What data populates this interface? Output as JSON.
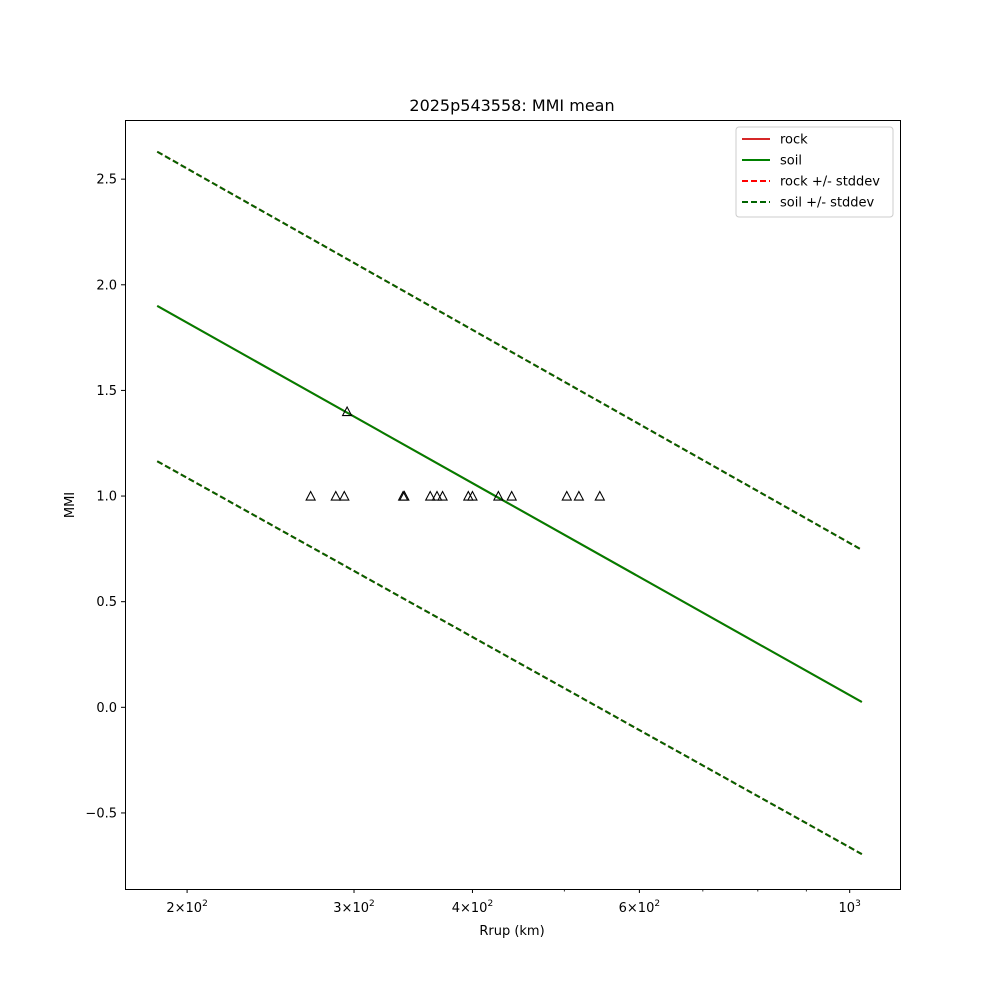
{
  "chart_data": {
    "type": "line",
    "title": "2025p543558: MMI mean",
    "xlabel": "Rrup (km)",
    "ylabel": "MMI",
    "xscale": "log",
    "xlim": [
      172,
      1130
    ],
    "ylim": [
      -0.86,
      2.78
    ],
    "xticks": [
      {
        "value": 200,
        "base": "2",
        "exp": "2"
      },
      {
        "value": 300,
        "base": "3",
        "exp": "2"
      },
      {
        "value": 400,
        "base": "4",
        "exp": "2"
      },
      {
        "value": 600,
        "base": "6",
        "exp": "2"
      },
      {
        "value": 1000,
        "base": "",
        "exp": "3"
      }
    ],
    "xminor_ticks": [
      500,
      700,
      800,
      900
    ],
    "yticks": [
      {
        "value": -0.5,
        "label": "−0.5"
      },
      {
        "value": 0.0,
        "label": "0.0"
      },
      {
        "value": 0.5,
        "label": "0.5"
      },
      {
        "value": 1.0,
        "label": "1.0"
      },
      {
        "value": 1.5,
        "label": "1.5"
      },
      {
        "value": 2.0,
        "label": "2.0"
      },
      {
        "value": 2.5,
        "label": "2.5"
      }
    ],
    "grid": false,
    "legend_position": "top-right",
    "series": [
      {
        "name": "rock",
        "style": "solid",
        "color": "#d62728",
        "x": [
          186,
          1030
        ],
        "y": [
          1.9,
          0.025
        ]
      },
      {
        "name": "soil",
        "style": "solid",
        "color": "#008000",
        "x": [
          186,
          1030
        ],
        "y": [
          1.9,
          0.025
        ]
      },
      {
        "name": "rock +/- stddev",
        "style": "dashed",
        "color": "#ff0000",
        "x": [
          186,
          1030
        ],
        "y": [
          2.63,
          0.745
        ],
        "y2": [
          1.165,
          -0.695
        ]
      },
      {
        "name": "soil +/- stddev",
        "style": "dashed",
        "color": "#006400",
        "x": [
          186,
          1030
        ],
        "y": [
          2.63,
          0.745
        ],
        "y2": [
          1.165,
          -0.695
        ]
      }
    ],
    "observations": {
      "marker": "triangle",
      "x": [
        270,
        287,
        293,
        295,
        338,
        339,
        361,
        367,
        372,
        396,
        400,
        426,
        440,
        503,
        518,
        545
      ],
      "y": [
        1.0,
        1.0,
        1.0,
        1.4,
        1.0,
        1.0,
        1.0,
        1.0,
        1.0,
        1.0,
        1.0,
        1.0,
        1.0,
        1.0,
        1.0,
        1.0
      ]
    }
  }
}
